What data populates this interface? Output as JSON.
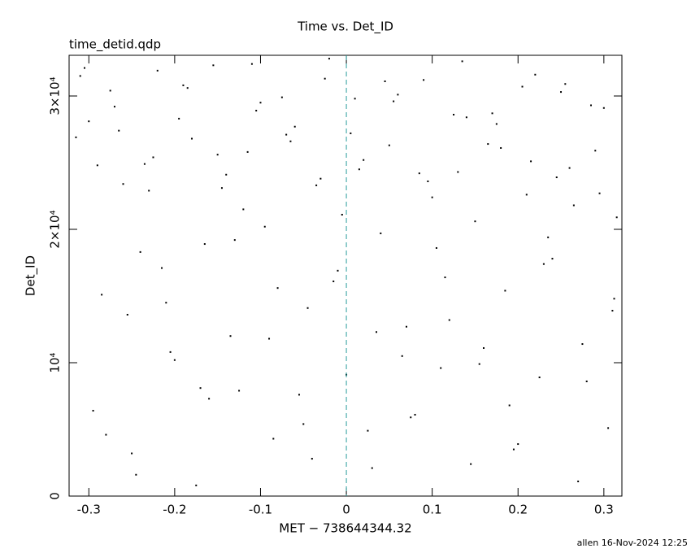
{
  "chart_data": {
    "type": "scatter",
    "title": "Time vs. Det_ID",
    "subtitle": "time_detid.qdp",
    "x_label": "MET − 738644344.32",
    "y_label": "Det_ID",
    "footer": "allen 16-Nov-2024 12:25",
    "color": "#000000",
    "reference_line": {
      "x": 0,
      "color": "#2a9d9d"
    },
    "xlim": [
      -0.323,
      0.321
    ],
    "ylim": [
      0,
      33050
    ],
    "xticks": [
      -0.3,
      -0.2,
      -0.1,
      0,
      0.1,
      0.2,
      0.3
    ],
    "yticks": [
      0,
      {
        "value": 10000,
        "label": "10⁴"
      },
      {
        "value": 20000,
        "label": "2×10⁴"
      },
      {
        "value": 30000,
        "label": "3×10⁴"
      }
    ],
    "x": [
      -0.31,
      -0.29,
      -0.27,
      -0.25,
      -0.23,
      -0.21,
      -0.19,
      -0.17,
      -0.15,
      -0.13,
      -0.11,
      -0.09,
      -0.07,
      -0.05,
      -0.03,
      -0.01,
      0.01,
      0.03,
      0.05,
      0.07,
      0.09,
      0.11,
      0.13,
      0.15,
      0.17,
      0.19,
      0.21,
      0.23,
      0.25,
      0.27,
      0.29,
      0.31,
      -0.3,
      -0.28,
      -0.26,
      -0.24,
      -0.22,
      -0.2,
      -0.18,
      -0.16,
      -0.14,
      -0.12,
      -0.1,
      -0.08,
      -0.06,
      -0.04,
      -0.02,
      0.0,
      0.02,
      0.04,
      0.06,
      0.08,
      0.1,
      0.12,
      0.14,
      0.16,
      0.18,
      0.2,
      0.22,
      0.24,
      0.26,
      0.28,
      0.3,
      0.315,
      -0.305,
      -0.285,
      -0.265,
      -0.245,
      -0.225,
      -0.205,
      -0.185,
      -0.165,
      -0.145,
      -0.125,
      -0.105,
      -0.085,
      -0.065,
      -0.045,
      -0.025,
      -0.005,
      0.015,
      0.035,
      0.055,
      0.075,
      0.095,
      0.115,
      0.135,
      0.155,
      0.175,
      0.195,
      0.215,
      0.235,
      0.255,
      0.275,
      0.295,
      0.312,
      -0.315,
      -0.295,
      -0.275,
      -0.255,
      -0.235,
      -0.215,
      -0.195,
      -0.175,
      -0.155,
      -0.135,
      -0.115,
      -0.095,
      -0.075,
      -0.055,
      -0.035,
      -0.015,
      0.005,
      0.025,
      0.045,
      0.065,
      0.085,
      0.105,
      0.125,
      0.145,
      0.165,
      0.185,
      0.205,
      0.225,
      0.245,
      0.265,
      0.285,
      0.305
    ],
    "values": [
      31500,
      24800,
      29200,
      3200,
      22900,
      14500,
      30800,
      8100,
      25600,
      19200,
      32400,
      11800,
      27100,
      5400,
      23800,
      16900,
      29800,
      2100,
      26300,
      12700,
      31200,
      9600,
      24300,
      20600,
      28700,
      6800,
      22600,
      17400,
      30300,
      1100,
      25900,
      13900,
      28100,
      4600,
      23400,
      18300,
      31900,
      10200,
      26800,
      7300,
      24100,
      21500,
      29500,
      15600,
      27700,
      2800,
      32800,
      9100,
      25200,
      19700,
      30100,
      6100,
      22400,
      13200,
      28400,
      11100,
      26100,
      3900,
      31600,
      17800,
      24600,
      8600,
      29100,
      20900,
      32100,
      15100,
      27400,
      1600,
      25400,
      10800,
      30600,
      18900,
      23100,
      7900,
      28900,
      4300,
      26600,
      14100,
      31300,
      21100,
      24500,
      12300,
      29600,
      5900,
      23600,
      16400,
      32600,
      9900,
      27900,
      3500,
      25100,
      19400,
      30900,
      11400,
      22700,
      14800,
      26900,
      6400,
      30400,
      13600,
      24900,
      17100,
      28300,
      800,
      32300,
      12000,
      25800,
      20200,
      29900,
      7600,
      23300,
      16100,
      27200,
      4900,
      31100,
      10500,
      24200,
      18600,
      28600,
      2400,
      26400,
      15400,
      30700,
      8900,
      23900,
      21800,
      29300,
      5100
    ]
  }
}
